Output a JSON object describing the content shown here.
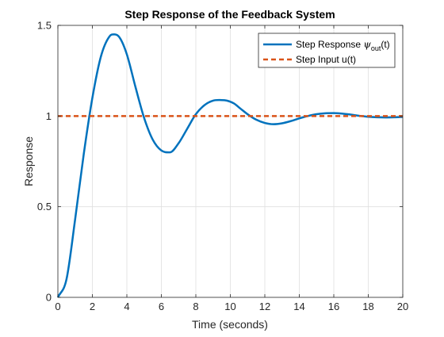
{
  "chart_data": {
    "type": "line",
    "title": "Step Response of the Feedback System",
    "xlabel": "Time (seconds)",
    "ylabel": "Response",
    "xlim": [
      0,
      20
    ],
    "ylim": [
      0,
      1.5
    ],
    "xticks": [
      0,
      2,
      4,
      6,
      8,
      10,
      12,
      14,
      16,
      18,
      20
    ],
    "yticks": [
      0,
      0.5,
      1,
      1.5
    ],
    "xtick_labels": [
      "0",
      "2",
      "4",
      "6",
      "8",
      "10",
      "12",
      "14",
      "16",
      "18",
      "20"
    ],
    "ytick_labels": [
      "0",
      "0.5",
      "1",
      "1.5"
    ],
    "grid": true,
    "legend_position": "top-right",
    "series": [
      {
        "name": "Step Response ψout(t)",
        "legend_main": "Step Response ",
        "legend_psi": "ψ",
        "legend_sub": "out",
        "legend_tail": "(t)",
        "style": "solid",
        "color": "#0072BD",
        "x": [
          0,
          0.5,
          1.0,
          1.5,
          2.0,
          2.5,
          3.0,
          3.3,
          3.6,
          4.0,
          4.5,
          5.0,
          5.5,
          6.0,
          6.5,
          7.0,
          7.5,
          8.0,
          8.5,
          9.0,
          9.5,
          9.8,
          10.2,
          10.6,
          11.0,
          11.5,
          12.0,
          12.5,
          13.0,
          13.5,
          14.0,
          14.5,
          15.0,
          15.5,
          16.0,
          16.4,
          16.8,
          17.2,
          17.6,
          18.0,
          18.5,
          19.0,
          19.5,
          20.0
        ],
        "y": [
          0,
          0.1,
          0.43,
          0.79,
          1.1,
          1.33,
          1.44,
          1.45,
          1.43,
          1.34,
          1.16,
          0.99,
          0.87,
          0.81,
          0.8,
          0.85,
          0.93,
          1.01,
          1.06,
          1.085,
          1.088,
          1.085,
          1.07,
          1.04,
          1.01,
          0.98,
          0.962,
          0.955,
          0.96,
          0.972,
          0.987,
          1.0,
          1.01,
          1.015,
          1.016,
          1.014,
          1.01,
          1.005,
          1.0,
          0.996,
          0.993,
          0.992,
          0.993,
          0.995
        ]
      },
      {
        "name": "Step Input u(t)",
        "style": "dashed",
        "color": "#D95319",
        "x": [
          0,
          20
        ],
        "y": [
          1,
          1
        ]
      }
    ]
  }
}
